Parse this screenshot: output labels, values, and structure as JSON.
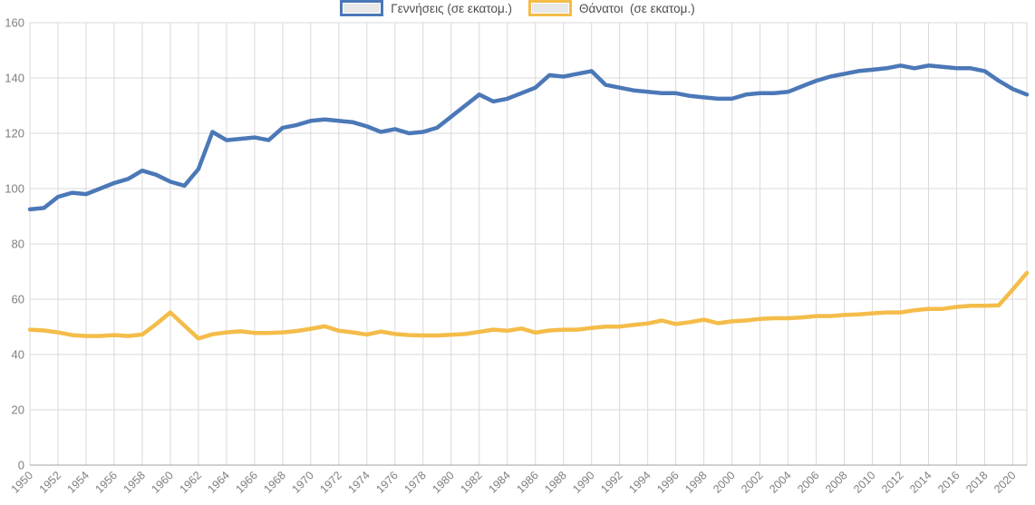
{
  "chart_data": {
    "type": "line",
    "title": "",
    "xlabel": "",
    "ylabel": "",
    "legend_position": "top-center",
    "grid": true,
    "x_range": [
      1950,
      2021
    ],
    "ylim": [
      0,
      160
    ],
    "y_ticks": [
      0,
      20,
      40,
      60,
      80,
      100,
      120,
      140,
      160
    ],
    "x_ticks": [
      1950,
      1952,
      1954,
      1956,
      1958,
      1960,
      1962,
      1964,
      1966,
      1968,
      1970,
      1972,
      1974,
      1976,
      1978,
      1980,
      1982,
      1984,
      1986,
      1988,
      1990,
      1992,
      1994,
      1996,
      1998,
      2000,
      2002,
      2004,
      2006,
      2008,
      2010,
      2012,
      2014,
      2016,
      2018,
      2020
    ],
    "x": [
      1950,
      1951,
      1952,
      1953,
      1954,
      1955,
      1956,
      1957,
      1958,
      1959,
      1960,
      1961,
      1962,
      1963,
      1964,
      1965,
      1966,
      1967,
      1968,
      1969,
      1970,
      1971,
      1972,
      1973,
      1974,
      1975,
      1976,
      1977,
      1978,
      1979,
      1980,
      1981,
      1982,
      1983,
      1984,
      1985,
      1986,
      1987,
      1988,
      1989,
      1990,
      1991,
      1992,
      1993,
      1994,
      1995,
      1996,
      1997,
      1998,
      1999,
      2000,
      2001,
      2002,
      2003,
      2004,
      2005,
      2006,
      2007,
      2008,
      2009,
      2010,
      2011,
      2012,
      2013,
      2014,
      2015,
      2016,
      2017,
      2018,
      2019,
      2020,
      2021
    ],
    "series": [
      {
        "name": "Γεννήσεις (σε εκατομ.)",
        "color": "#4b78b7",
        "values": [
          92.5,
          93,
          97,
          98.5,
          98,
          100,
          102,
          103.5,
          106.5,
          105,
          102.5,
          101,
          107,
          120.5,
          117.5,
          118,
          118.5,
          117.5,
          122,
          123,
          124.5,
          125,
          124.5,
          124,
          122.5,
          120.5,
          121.5,
          120,
          120.5,
          122,
          126,
          130,
          134,
          131.5,
          132.5,
          134.5,
          136.5,
          141,
          140.5,
          141.5,
          142.5,
          137.5,
          136.5,
          135.5,
          135,
          134.5,
          134.5,
          133.5,
          133,
          132.5,
          132.5,
          134,
          134.5,
          134.5,
          135,
          137,
          139,
          140.5,
          141.5,
          142.5,
          143,
          143.5,
          144.5,
          143.5,
          144.5,
          144,
          143.5,
          143.5,
          142.5,
          139,
          136,
          134
        ]
      },
      {
        "name": "Θάνατοι  (σε εκατομ.)",
        "color": "#f4bc49",
        "values": [
          49,
          48.7,
          48,
          47,
          46.7,
          46.7,
          47,
          46.7,
          47.2,
          51,
          55.2,
          50.5,
          45.8,
          47.3,
          48,
          48.4,
          47.8,
          47.8,
          48,
          48.5,
          49.3,
          50.2,
          48.6,
          48,
          47.2,
          48.3,
          47.4,
          47,
          46.9,
          46.9,
          47.1,
          47.4,
          48.2,
          49,
          48.6,
          49.4,
          47.9,
          48.7,
          49,
          49,
          49.6,
          50.1,
          50.1,
          50.7,
          51.2,
          52.3,
          51,
          51.7,
          52.6,
          51.3,
          52,
          52.3,
          52.9,
          53.1,
          53.1,
          53.4,
          53.9,
          53.9,
          54.3,
          54.5,
          54.9,
          55.2,
          55.2,
          56,
          56.5,
          56.5,
          57.2,
          57.6,
          57.6,
          57.8,
          63.5,
          69.5
        ]
      }
    ],
    "colors": {
      "gridline": "#d9d9d9",
      "axis_line": "#a0a0a0",
      "tick_label": "#7f7f7f",
      "legend_text": "#4d4d4d",
      "swatch_fill": "#e8e8e8"
    }
  }
}
